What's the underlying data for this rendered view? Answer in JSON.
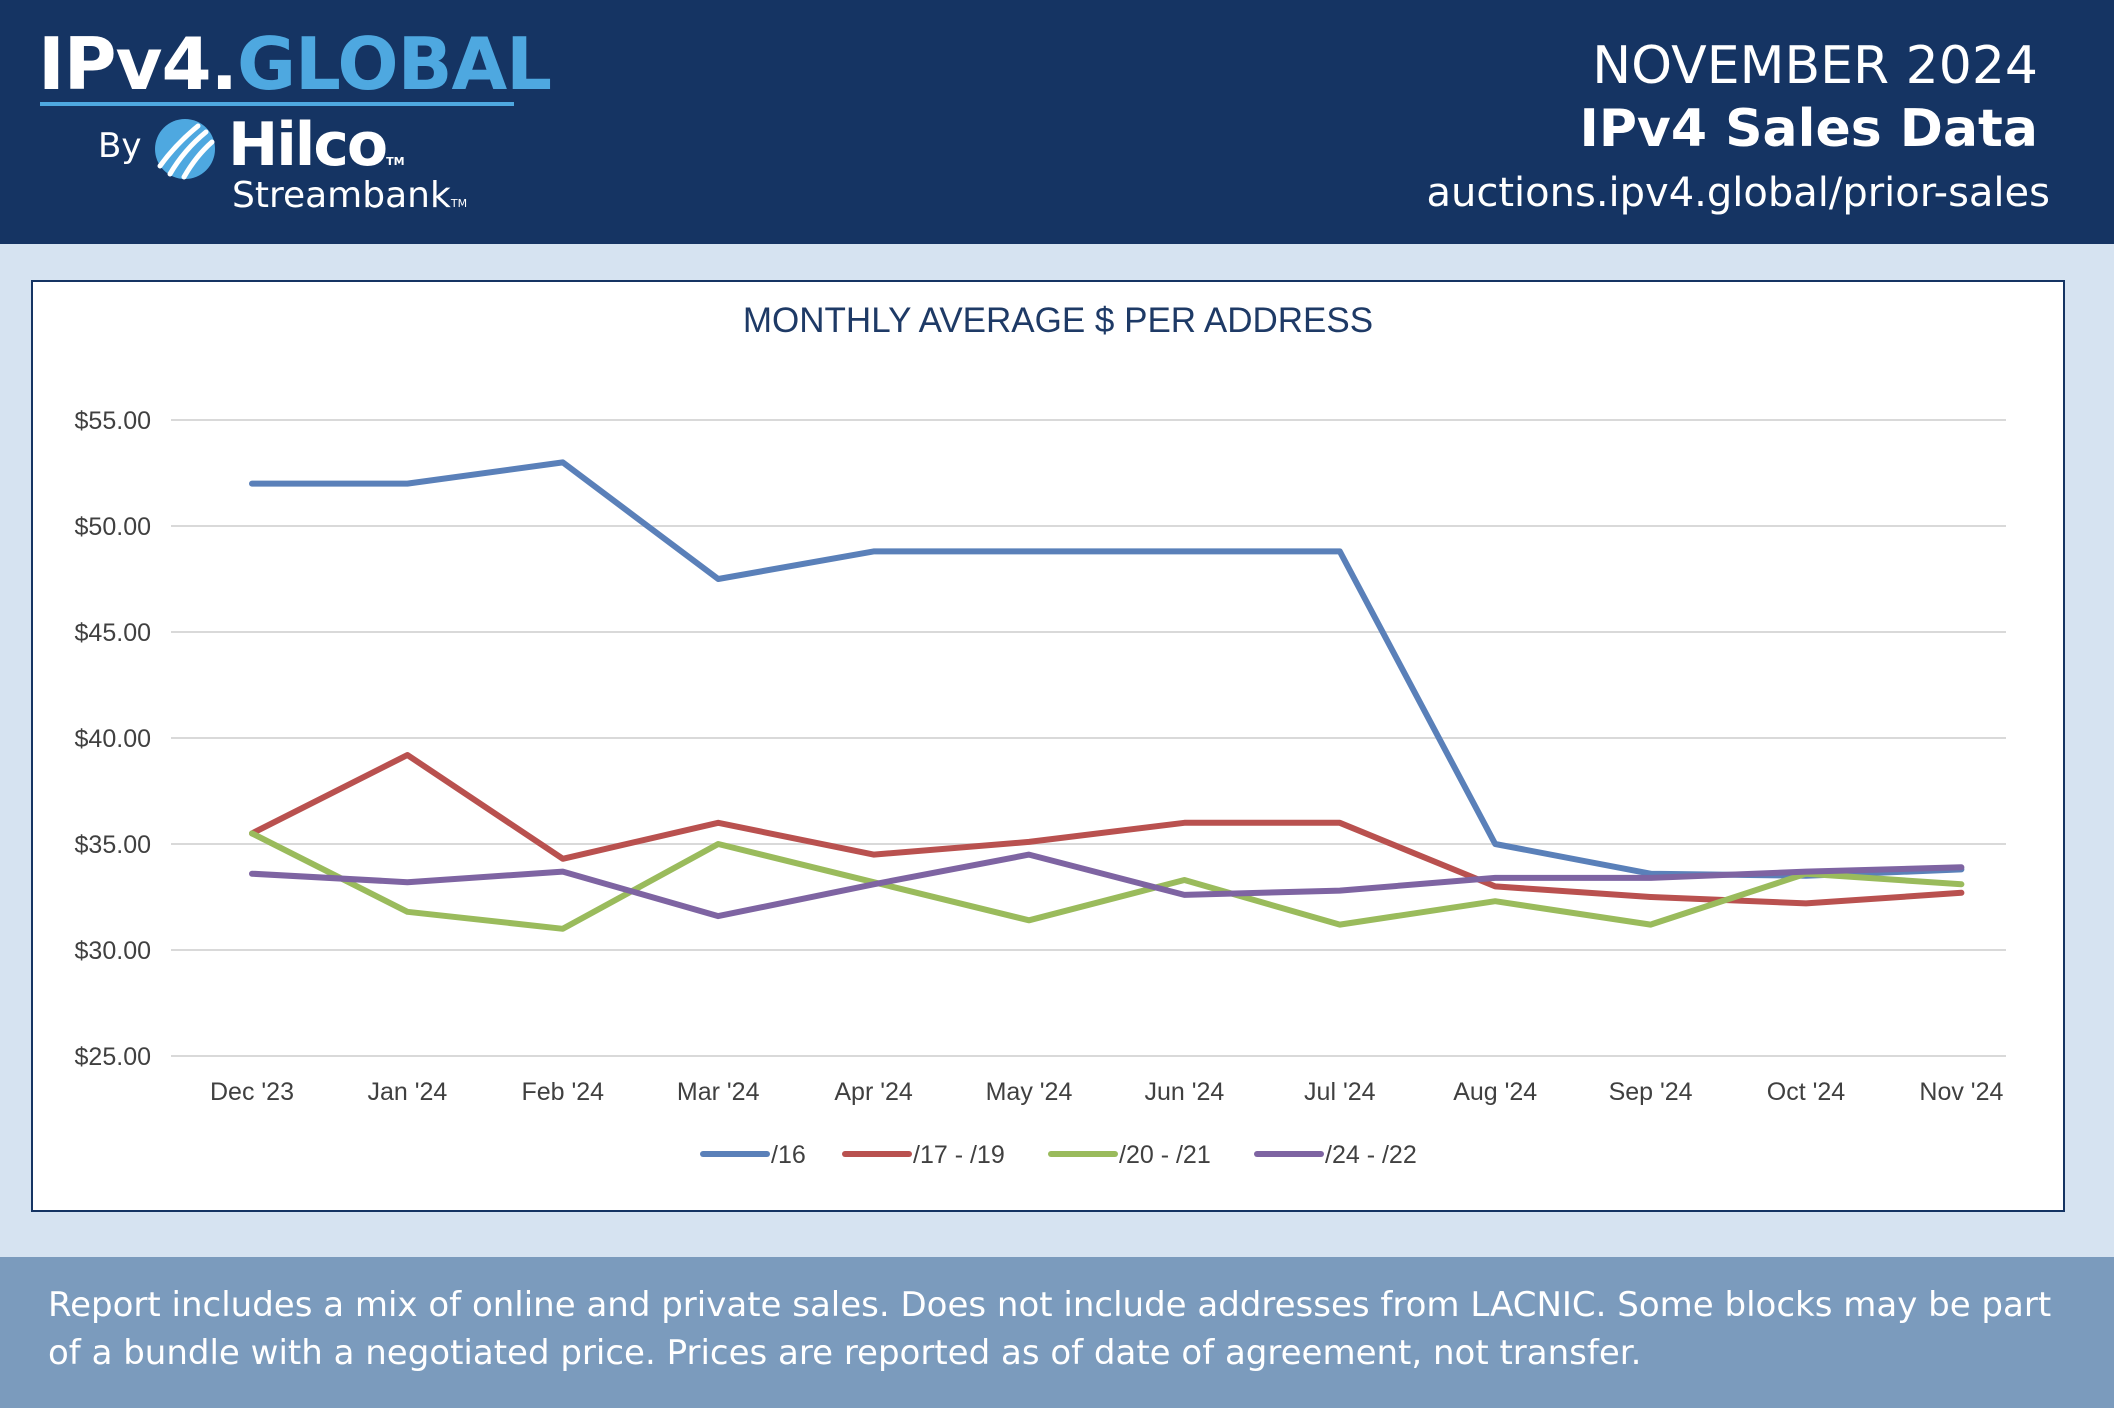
{
  "header": {
    "logo": {
      "part1": "IPv4.",
      "part2": "GLOBAL",
      "by": "By",
      "company": "Hilco",
      "company_tm": "TM",
      "company_sub": "Streambank",
      "company_sub_tm": "TM"
    },
    "month": "NOVEMBER 2024",
    "title": "IPv4 Sales Data",
    "url": "auctions.ipv4.global/prior-sales"
  },
  "colors": {
    "header_bg": "#153463",
    "accent": "#4ea8e0",
    "page_bg": "#d6e3f1",
    "footer_bg": "#7b9bbd"
  },
  "chart_data": {
    "type": "line",
    "title": "MONTHLY AVERAGE $ PER ADDRESS",
    "categories": [
      "Dec '23",
      "Jan '24",
      "Feb '24",
      "Mar '24",
      "Apr '24",
      "May '24",
      "Jun '24",
      "Jul '24",
      "Aug '24",
      "Sep '24",
      "Oct '24",
      "Nov '24"
    ],
    "ylim": [
      25,
      55
    ],
    "yticks": [
      25,
      30,
      35,
      40,
      45,
      50,
      55
    ],
    "ytick_labels": [
      "$25.00",
      "$30.00",
      "$35.00",
      "$40.00",
      "$45.00",
      "$50.00",
      "$55.00"
    ],
    "grid": true,
    "legend": "bottom",
    "series": [
      {
        "name": "/16",
        "color": "#5a80b9",
        "values": [
          52.0,
          52.0,
          53.0,
          47.5,
          48.8,
          48.8,
          48.8,
          48.8,
          35.0,
          33.6,
          33.5,
          33.8
        ]
      },
      {
        "name": "/17 - /19",
        "color": "#b9514f",
        "values": [
          35.5,
          39.2,
          34.3,
          36.0,
          34.5,
          35.1,
          36.0,
          36.0,
          33.0,
          32.5,
          32.2,
          32.7
        ]
      },
      {
        "name": "/20 - /21",
        "color": "#9abb5c",
        "values": [
          35.5,
          31.8,
          31.0,
          35.0,
          33.2,
          31.4,
          33.3,
          31.2,
          32.3,
          31.2,
          33.6,
          33.1
        ]
      },
      {
        "name": "/24 - /22",
        "color": "#7e64a2",
        "values": [
          33.6,
          33.2,
          33.7,
          31.6,
          33.1,
          34.5,
          32.6,
          32.8,
          33.4,
          33.4,
          33.7,
          33.9
        ]
      }
    ]
  },
  "footer": {
    "note": "Report includes a mix of online and private sales. Does not include addresses from LACNIC. Some blocks may be part of a bundle with a negotiated price. Prices are reported as of date of agreement, not transfer."
  }
}
